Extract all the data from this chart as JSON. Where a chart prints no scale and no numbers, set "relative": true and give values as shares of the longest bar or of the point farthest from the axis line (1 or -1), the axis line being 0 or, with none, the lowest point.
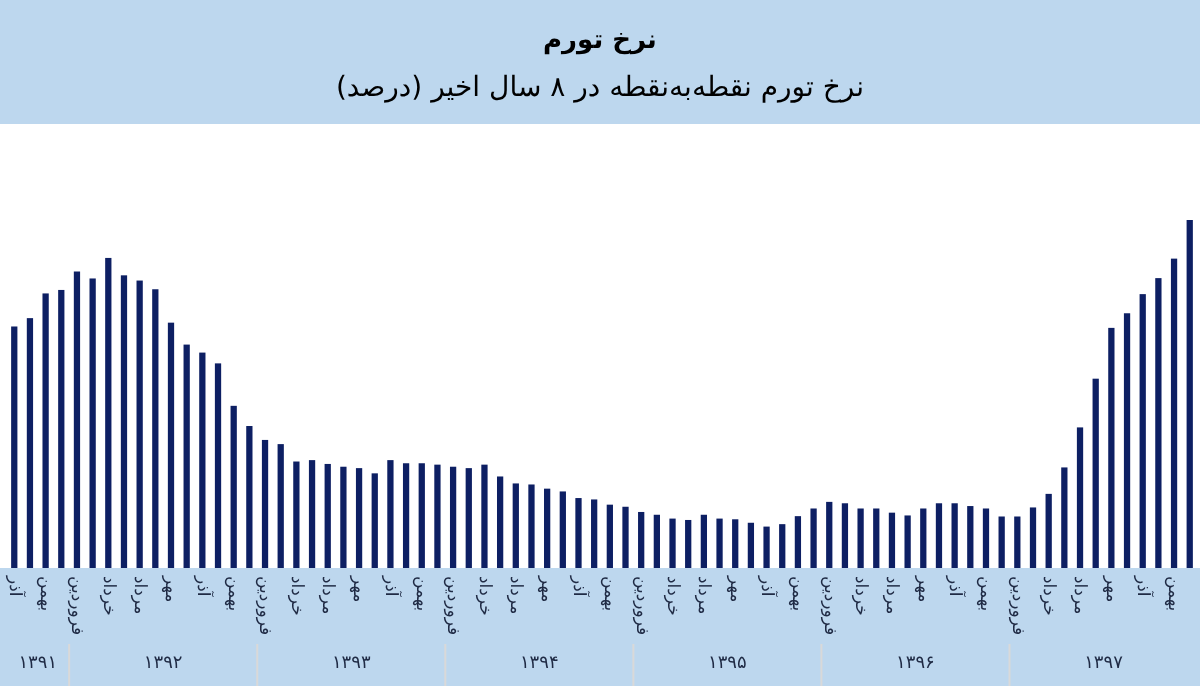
{
  "chart_data": {
    "type": "bar",
    "title": "نرخ تورم",
    "subtitle": "نرخ تورم نقطه‌به‌نقطه در ۸ سال اخیر (درصد)",
    "relative": true,
    "color": "#0d1f63",
    "categories": [
      "آذر",
      null,
      "بهمن",
      null,
      "فروردین",
      null,
      "خرداد",
      null,
      "مرداد",
      null,
      "مهر",
      null,
      "آذر",
      null,
      "بهمن",
      null,
      "فروردین",
      null,
      "خرداد",
      null,
      "مرداد",
      null,
      "مهر",
      null,
      "آذر",
      null,
      "بهمن",
      null,
      "فروردین",
      null,
      "خرداد",
      null,
      "مرداد",
      null,
      "مهر",
      null,
      "آذر",
      null,
      "بهمن",
      null,
      "فروردین",
      null,
      "خرداد",
      null,
      "مرداد",
      null,
      "مهر",
      null,
      "آذر",
      null,
      "بهمن",
      null,
      "فروردین",
      null,
      "خرداد",
      null,
      "مرداد",
      null,
      "مهر",
      null,
      "آذر",
      null,
      "بهمن",
      null,
      "فروردین",
      null,
      "خرداد",
      null,
      "مرداد",
      null,
      "مهر",
      null,
      "آذر",
      null,
      "بهمن",
      null
    ],
    "values": [
      0.694,
      0.718,
      0.789,
      0.799,
      0.852,
      0.832,
      0.891,
      0.841,
      0.826,
      0.801,
      0.705,
      0.642,
      0.619,
      0.588,
      0.466,
      0.408,
      0.368,
      0.356,
      0.306,
      0.31,
      0.299,
      0.291,
      0.287,
      0.272,
      0.31,
      0.301,
      0.301,
      0.297,
      0.291,
      0.287,
      0.297,
      0.263,
      0.243,
      0.24,
      0.228,
      0.22,
      0.201,
      0.197,
      0.182,
      0.176,
      0.161,
      0.153,
      0.142,
      0.138,
      0.153,
      0.142,
      0.14,
      0.13,
      0.119,
      0.126,
      0.149,
      0.171,
      0.19,
      0.186,
      0.171,
      0.171,
      0.159,
      0.151,
      0.171,
      0.186,
      0.186,
      0.178,
      0.171,
      0.148,
      0.148,
      0.174,
      0.213,
      0.289,
      0.404,
      0.544,
      0.69,
      0.732,
      0.787,
      0.833,
      0.889,
      1
    ],
    "annotations": [
      "۱۳۹۱",
      "۱۳۹۲",
      "۱۳۹۳",
      "۱۳۹۴",
      "۱۳۹۵",
      "۱۳۹۶",
      "۱۳۹۷"
    ]
  }
}
